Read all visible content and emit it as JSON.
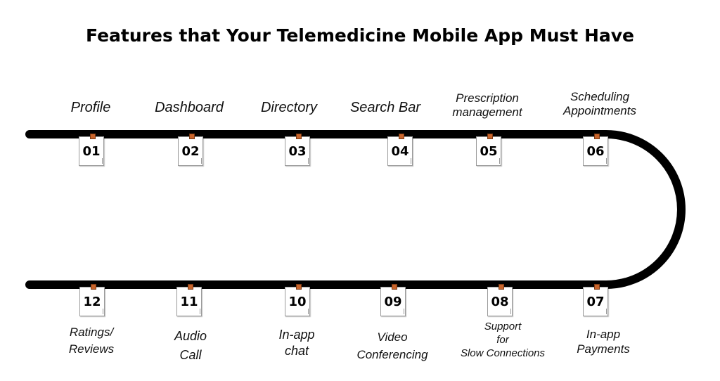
{
  "title": "Features that Your Telemedicine Mobile App Must Have",
  "track_color": "#000000",
  "pin_color": "#c8642b",
  "steps": [
    {
      "num": "01",
      "label_lines": [
        "Profile"
      ]
    },
    {
      "num": "02",
      "label_lines": [
        "Dashboard"
      ]
    },
    {
      "num": "03",
      "label_lines": [
        "Directory"
      ]
    },
    {
      "num": "04",
      "label_lines": [
        "Search  Bar"
      ]
    },
    {
      "num": "05",
      "label_lines": [
        "Prescription",
        "management"
      ]
    },
    {
      "num": "06",
      "label_lines": [
        "Scheduling",
        "Appointments"
      ]
    },
    {
      "num": "07",
      "label_lines": [
        "In-app",
        "Payments"
      ]
    },
    {
      "num": "08",
      "label_lines": [
        "Support",
        "for",
        "Slow  Connections"
      ]
    },
    {
      "num": "09",
      "label_lines": [
        "Video",
        "Conferencing"
      ]
    },
    {
      "num": "10",
      "label_lines": [
        "In-app",
        "chat"
      ]
    },
    {
      "num": "11",
      "label_lines": [
        "Audio",
        "Call"
      ]
    },
    {
      "num": "12",
      "label_lines": [
        "Ratings/",
        "Reviews"
      ]
    }
  ]
}
